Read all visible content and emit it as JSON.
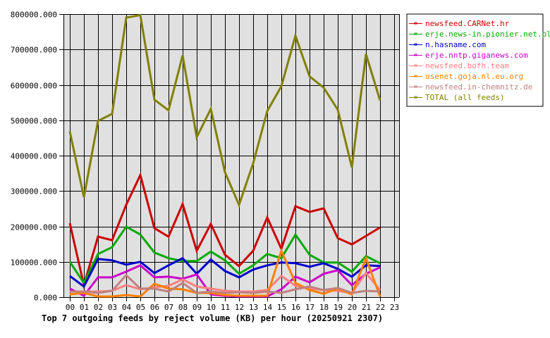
{
  "chart_data": {
    "type": "line",
    "title": "Top 7 outgoing feeds by reject volume (KB) per hour (20250921 2307)",
    "xlabel": "",
    "ylabel": "",
    "ylim": [
      0,
      800000
    ],
    "yticks": [
      "0.000",
      "100000.000",
      "200000.000",
      "300000.000",
      "400000.000",
      "500000.000",
      "600000.000",
      "700000.000",
      "800000.000"
    ],
    "ytick_values": [
      0,
      100000,
      200000,
      300000,
      400000,
      500000,
      600000,
      700000,
      800000
    ],
    "categories": [
      "00",
      "01",
      "02",
      "03",
      "04",
      "05",
      "06",
      "07",
      "08",
      "09",
      "10",
      "11",
      "12",
      "13",
      "14",
      "15",
      "16",
      "17",
      "18",
      "19",
      "20",
      "21",
      "22",
      "23"
    ],
    "grid": true,
    "legend_position": "right-top",
    "series": [
      {
        "name": "newsfeed.CARNet.hr",
        "color": "#cc0000",
        "values": [
          209000,
          34000,
          171000,
          161000,
          261000,
          345000,
          195000,
          171000,
          263000,
          131000,
          207000,
          120000,
          88000,
          131000,
          225000,
          137000,
          257000,
          241000,
          251000,
          167000,
          149000,
          173000,
          197000
        ]
      },
      {
        "name": "erje.news-in.pionier.net.pl",
        "color": "#00aa00",
        "values": [
          100000,
          40000,
          122000,
          141000,
          199000,
          177000,
          126000,
          110000,
          102000,
          102000,
          129000,
          104000,
          66000,
          90000,
          122000,
          110000,
          177000,
          120000,
          98000,
          98000,
          72000,
          116000,
          96000
        ]
      },
      {
        "name": "n.hasname.com",
        "color": "#0000cc",
        "values": [
          60000,
          30000,
          108000,
          104000,
          92000,
          100000,
          68000,
          90000,
          110000,
          66000,
          106000,
          74000,
          56000,
          78000,
          90000,
          98000,
          96000,
          86000,
          96000,
          80000,
          58000,
          90000,
          88000
        ]
      },
      {
        "name": "erje.nntp.giganews.com",
        "color": "#cc00cc",
        "values": [
          24000,
          4000,
          56000,
          56000,
          72000,
          90000,
          56000,
          58000,
          52000,
          64000,
          8000,
          4000,
          2000,
          2000,
          2000,
          22000,
          58000,
          42000,
          66000,
          76000,
          34000,
          66000,
          84000
        ]
      },
      {
        "name": "newsfeed.bofh.team",
        "color": "#ff8080",
        "values": [
          16000,
          16000,
          16000,
          18000,
          34000,
          22000,
          28000,
          32000,
          50000,
          30000,
          24000,
          18000,
          16000,
          16000,
          20000,
          60000,
          32000,
          24000,
          20000,
          18000,
          12000,
          68000,
          20000
        ]
      },
      {
        "name": "usenet.goja.nl.eu.org",
        "color": "#ff8000",
        "values": [
          8000,
          12000,
          2000,
          2000,
          6000,
          2000,
          38000,
          24000,
          22000,
          12000,
          12000,
          6000,
          4000,
          4000,
          4000,
          131000,
          40000,
          20000,
          10000,
          24000,
          8000,
          110000,
          2000
        ]
      },
      {
        "name": "newsfeed.in-chemnitz.de",
        "color": "#c08080",
        "values": [
          16000,
          16000,
          12000,
          18000,
          62000,
          24000,
          24000,
          16000,
          40000,
          12000,
          16000,
          12000,
          14000,
          12000,
          16000,
          12000,
          22000,
          30000,
          20000,
          26000,
          12000,
          18000,
          16000
        ]
      },
      {
        "name": "TOTAL (all feeds)",
        "color": "#808000",
        "values": [
          468000,
          283000,
          498000,
          518000,
          790000,
          797000,
          558000,
          528000,
          683000,
          452000,
          532000,
          353000,
          261000,
          378000,
          526000,
          596000,
          739000,
          624000,
          592000,
          530000,
          367000,
          687000,
          556000
        ]
      }
    ]
  },
  "style": {
    "plot_bg": "#e0e0e0",
    "grid_color": "#000000",
    "legend_border": "#000000"
  }
}
